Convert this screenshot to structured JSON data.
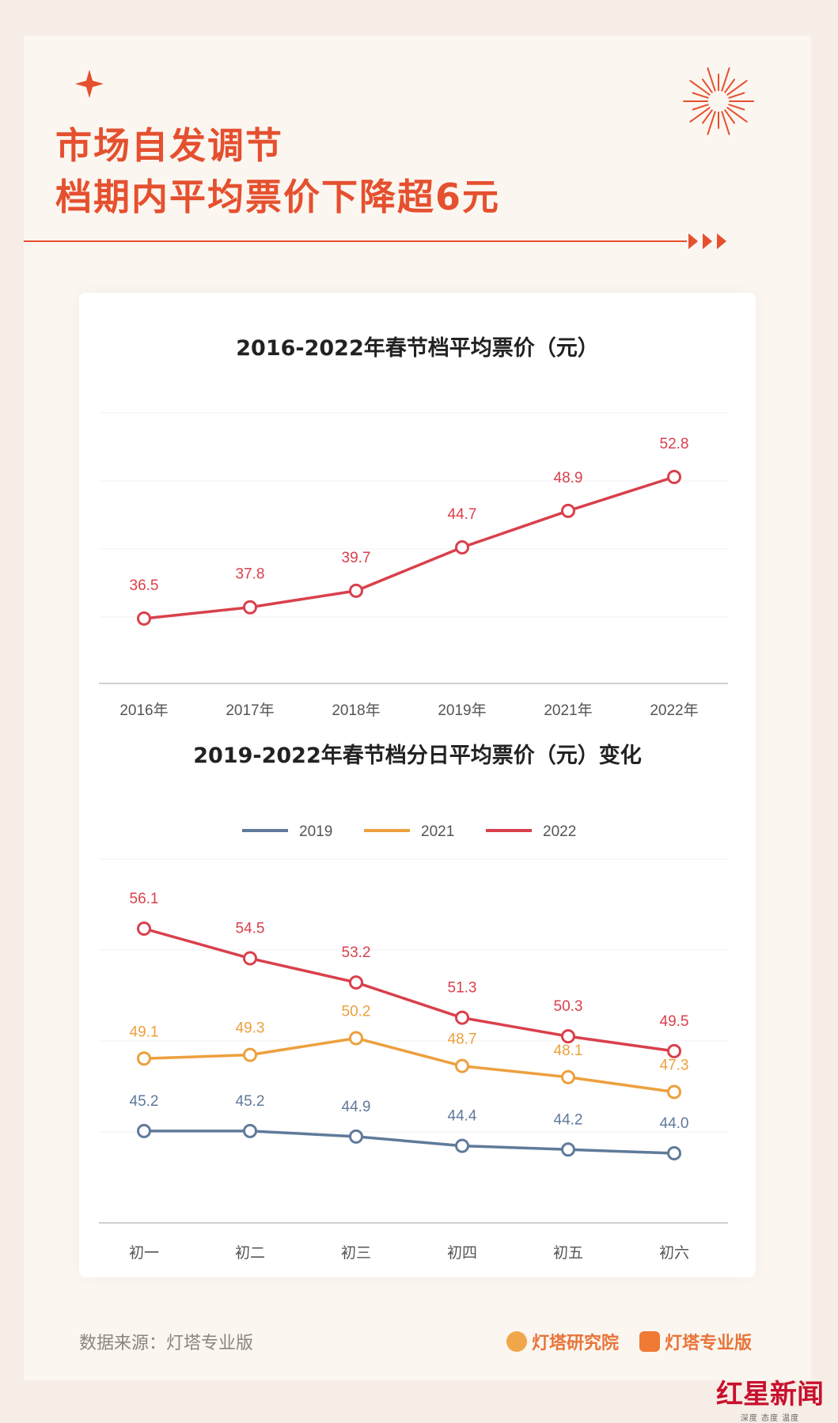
{
  "header": {
    "title_line1": "市场自发调节",
    "title_line2": "档期内平均票价下降超6元"
  },
  "colors": {
    "accent": "#e5502f",
    "s2019": "#5f7a9a",
    "s2021": "#eda03e",
    "s2022": "#d9404c"
  },
  "chart_data": [
    {
      "type": "line",
      "title": "2016-2022年春节档平均票价（元）",
      "categories": [
        "2016年",
        "2017年",
        "2018年",
        "2019年",
        "2021年",
        "2022年"
      ],
      "series": [
        {
          "values": [
            36.5,
            37.8,
            39.7,
            44.7,
            48.9,
            52.8
          ]
        }
      ],
      "value_labels": [
        "36.5",
        "37.8",
        "39.7",
        "44.7",
        "48.9",
        "52.8"
      ]
    },
    {
      "type": "line",
      "title": "2019-2022年春节档分日平均票价（元）变化",
      "categories": [
        "初一",
        "初二",
        "初三",
        "初四",
        "初五",
        "初六"
      ],
      "legend_position": "top",
      "series": [
        {
          "name": "2019",
          "values": [
            45.2,
            45.2,
            44.9,
            44.4,
            44.2,
            44.0
          ],
          "value_labels": [
            "45.2",
            "45.2",
            "44.9",
            "44.4",
            "44.2",
            "44.0"
          ]
        },
        {
          "name": "2021",
          "values": [
            49.1,
            49.3,
            50.2,
            48.7,
            48.1,
            47.3
          ],
          "value_labels": [
            "49.1",
            "49.3",
            "50.2",
            "48.7",
            "48.1",
            "47.3"
          ]
        },
        {
          "name": "2022",
          "values": [
            56.1,
            54.5,
            53.2,
            51.3,
            50.3,
            49.5
          ],
          "value_labels": [
            "56.1",
            "54.5",
            "53.2",
            "51.3",
            "50.3",
            "49.5"
          ]
        }
      ]
    }
  ],
  "footer": {
    "source": "数据来源：灯塔专业版",
    "brand1": "灯塔研究院",
    "brand2": "灯塔专业版",
    "watermark_main": "红星新闻",
    "watermark_sub": "深度 态度 温度"
  }
}
